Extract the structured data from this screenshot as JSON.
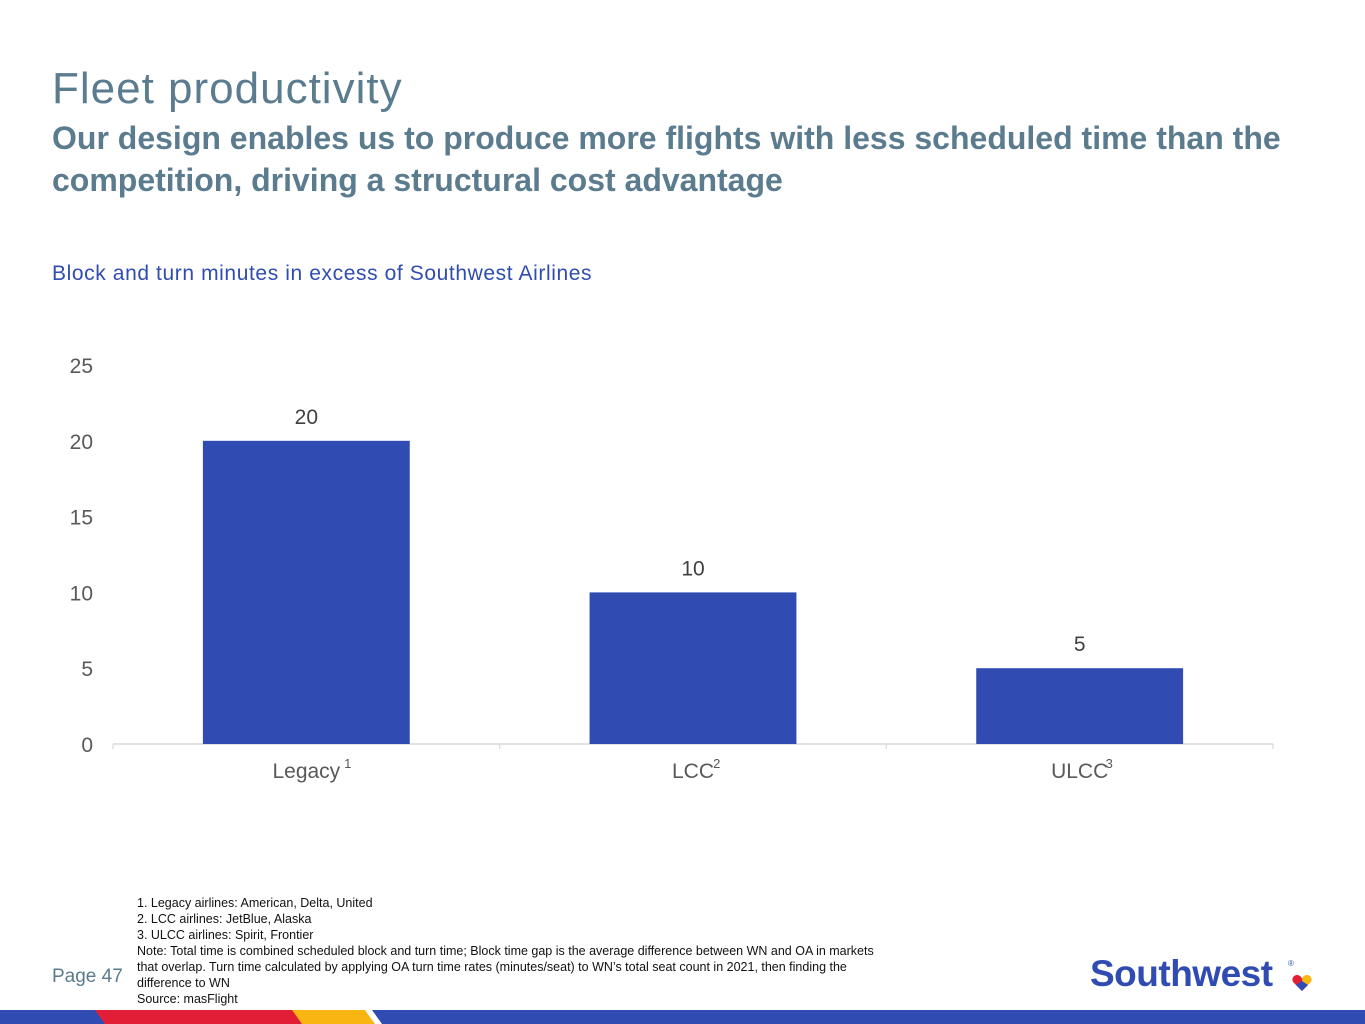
{
  "header": {
    "title": "Fleet productivity",
    "subtitle": "Our design enables us to produce more flights with less scheduled time than the competition, driving a structural cost advantage"
  },
  "colors": {
    "bar": "#304cb2",
    "heading": "#5b7b8e",
    "chart_title": "#2f4db0",
    "axis_text": "#595959",
    "data_label": "#404040"
  },
  "chart_data": {
    "type": "bar",
    "title": "Block and turn minutes in excess of Southwest Airlines",
    "categories": [
      "Legacy",
      "LCC",
      "ULCC"
    ],
    "category_footnote_marks": [
      "1",
      "2",
      "3"
    ],
    "values": [
      20,
      10,
      5
    ],
    "data_labels": [
      "20",
      "10",
      "5"
    ],
    "ylim": [
      0,
      25
    ],
    "yticks": [
      "0",
      "5",
      "10",
      "15",
      "20",
      "25"
    ],
    "xlabel": "",
    "ylabel": "",
    "grid": false,
    "legend": "none"
  },
  "footnotes": [
    "1. Legacy airlines: American, Delta, United",
    "2. LCC airlines: JetBlue, Alaska",
    "3. ULCC airlines: Spirit, Frontier",
    "Note:  Total time is combined scheduled block and turn time;  Block time gap is the average difference between WN and OA in markets that overlap. Turn time calculated by applying OA turn time rates (minutes/seat) to WN’s total seat count in 2021, then finding the difference to WN",
    "Source:  masFlight"
  ],
  "footer": {
    "page": "Page 47",
    "logo_text": "Southwest",
    "logo_registered": "®"
  }
}
